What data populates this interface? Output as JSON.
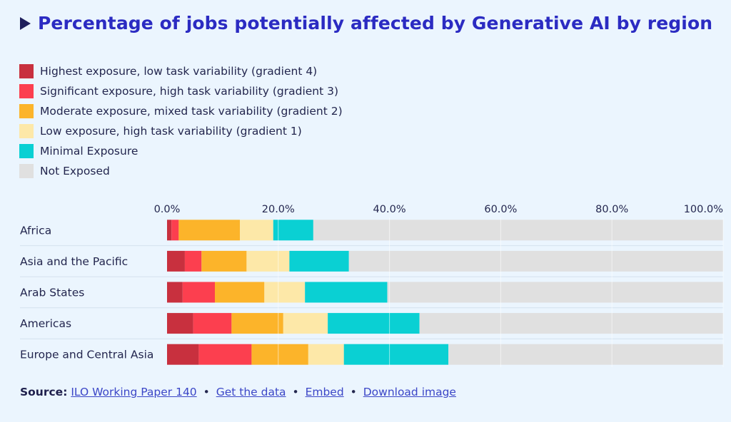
{
  "title": "Percentage of jobs potentially affected by Generative AI by region",
  "legend": [
    {
      "label": "Highest exposure, low task variability (gradient 4)",
      "color": "#c8303e"
    },
    {
      "label": "Significant exposure, high task variability (gradient 3)",
      "color": "#fc3f4f"
    },
    {
      "label": "Moderate exposure, mixed task variability (gradient 2)",
      "color": "#fcb42a"
    },
    {
      "label": "Low exposure, high task variability (gradient 1)",
      "color": "#fde8a8"
    },
    {
      "label": "Minimal Exposure",
      "color": "#0ad0d3"
    },
    {
      "label": "Not Exposed",
      "color": "#e0e0e0"
    }
  ],
  "source": {
    "label": "Source:",
    "links": [
      "ILO Working Paper 140",
      "Get the data",
      "Embed",
      "Download image"
    ],
    "separator": "•"
  },
  "chart_data": {
    "type": "bar",
    "orientation": "horizontal",
    "stacked": true,
    "title": "Percentage of jobs potentially affected by Generative AI by region",
    "categories": [
      "Africa",
      "Asia and the Pacific",
      "Arab States",
      "Americas",
      "Europe and Central Asia"
    ],
    "series": [
      {
        "name": "Highest exposure, low task variability (gradient 4)",
        "color": "#c8303e",
        "values": [
          0.8,
          3.2,
          2.8,
          4.7,
          5.7
        ]
      },
      {
        "name": "Significant exposure, high task variability (gradient 3)",
        "color": "#fc3f4f",
        "values": [
          1.3,
          3.0,
          5.8,
          6.9,
          9.5
        ]
      },
      {
        "name": "Moderate exposure, mixed task variability (gradient 2)",
        "color": "#fcb42a",
        "values": [
          11.0,
          8.1,
          8.9,
          9.3,
          10.2
        ]
      },
      {
        "name": "Low exposure, high task variability (gradient 1)",
        "color": "#fde8a8",
        "values": [
          6.0,
          7.7,
          7.3,
          8.0,
          6.4
        ]
      },
      {
        "name": "Minimal Exposure",
        "color": "#0ad0d3",
        "values": [
          7.2,
          10.7,
          14.8,
          16.5,
          18.8
        ]
      },
      {
        "name": "Not Exposed",
        "color": "#e0e0e0",
        "values": [
          73.7,
          67.3,
          60.4,
          54.6,
          49.4
        ]
      }
    ],
    "xticks": [
      "0.0%",
      "20.0%",
      "40.0%",
      "60.0%",
      "80.0%",
      "100.0%"
    ],
    "xlim": [
      0,
      100
    ],
    "grid": true
  }
}
